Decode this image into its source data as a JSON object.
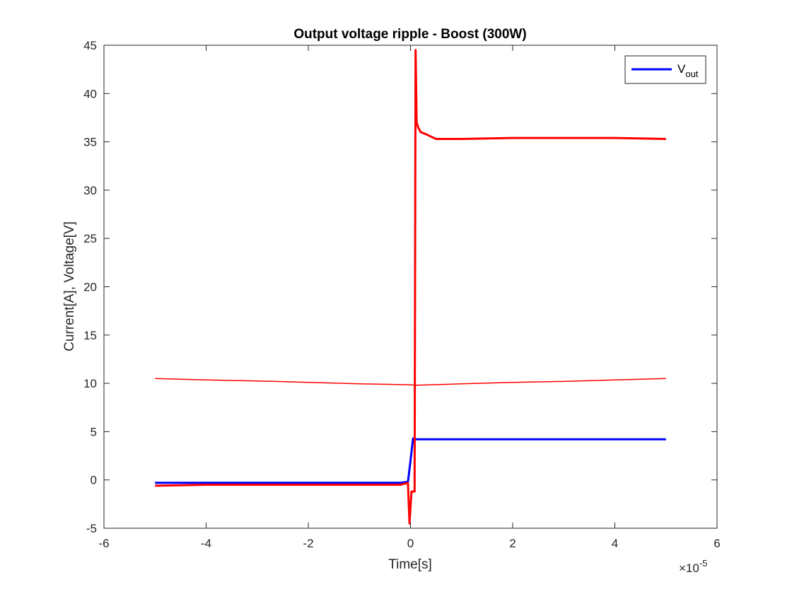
{
  "chart_data": {
    "type": "line",
    "title": "Output voltage ripple - Boost (300W)",
    "xlabel": "Time[s]",
    "ylabel": "Current[A], Voltage[V]",
    "x_exponent_label": "×10",
    "x_exponent": "-5",
    "xlim": [
      -6,
      6
    ],
    "ylim": [
      -5,
      45
    ],
    "x_ticks": [
      -6,
      -4,
      -2,
      0,
      2,
      4,
      6
    ],
    "x_tick_labels": [
      "-6",
      "-4",
      "-2",
      "0",
      "2",
      "4",
      "6"
    ],
    "y_ticks": [
      -5,
      0,
      5,
      10,
      15,
      20,
      25,
      30,
      35,
      40,
      45
    ],
    "y_tick_labels": [
      "-5",
      "0",
      "5",
      "10",
      "15",
      "20",
      "25",
      "30",
      "35",
      "40",
      "45"
    ],
    "grid": false,
    "legend": {
      "placement": "top-right",
      "entries": [
        {
          "label": "V",
          "subscript": "out",
          "color": "#0000ff"
        }
      ]
    },
    "series": [
      {
        "name": "V_out",
        "color": "#0000ff",
        "x": [
          -5,
          -4,
          -3,
          -2,
          -1,
          -0.2,
          -0.05,
          0,
          0.05,
          0.1,
          0.5,
          1,
          2,
          3,
          4,
          5
        ],
        "values": [
          -0.3,
          -0.3,
          -0.3,
          -0.3,
          -0.3,
          -0.3,
          -0.2,
          2.0,
          4.3,
          4.2,
          4.2,
          4.2,
          4.2,
          4.2,
          4.2,
          4.2
        ]
      },
      {
        "color": "#ff0000",
        "x": [
          -5,
          -4,
          -3,
          -2,
          -1,
          -0.2,
          -0.05,
          -0.02,
          0.02,
          0.08,
          0.1,
          0.12,
          0.15,
          0.2,
          0.3,
          0.5,
          1,
          2,
          3,
          4,
          5
        ],
        "values": [
          -0.6,
          -0.5,
          -0.5,
          -0.5,
          -0.5,
          -0.5,
          -0.3,
          -4.5,
          -1.2,
          -1.2,
          44.5,
          37.0,
          36.5,
          36.0,
          35.8,
          35.3,
          35.3,
          35.4,
          35.4,
          35.4,
          35.3
        ]
      },
      {
        "color": "#ff0000",
        "x": [
          -5,
          -4,
          -3,
          -2,
          -1,
          0,
          0.1,
          1,
          2,
          3,
          4,
          5
        ],
        "values": [
          10.5,
          10.35,
          10.25,
          10.1,
          9.95,
          9.85,
          9.8,
          9.95,
          10.1,
          10.2,
          10.35,
          10.5
        ]
      }
    ]
  }
}
